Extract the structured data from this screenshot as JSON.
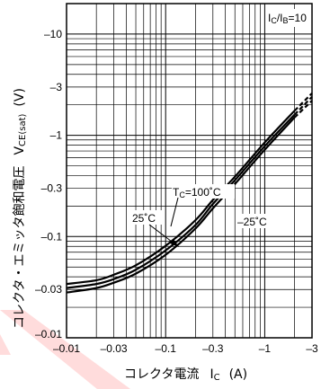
{
  "chart_data": {
    "type": "line",
    "x_scale": "log",
    "y_scale": "log",
    "xlim": [
      -0.01,
      -3
    ],
    "ylim": [
      -0.01,
      -20
    ],
    "xlabel": {
      "text": "コレクタ電流",
      "sym": "I",
      "sub": "C",
      "unit": "(A)"
    },
    "ylabel": {
      "text": "コレクタ・エミッタ飽和電圧",
      "sym": "V",
      "sub": "CE(sat)",
      "unit": "(V)"
    },
    "condition": {
      "a": "I",
      "a_sub": "C",
      "slash": "/I",
      "b_sub": "B",
      "value": "=10"
    },
    "x_ticks": [
      "–0.01",
      "–0.03",
      "–0.1",
      "–0.3",
      "–1",
      "–3"
    ],
    "y_ticks": [
      "–0.01",
      "–0.03",
      "–0.1",
      "–0.3",
      "–1",
      "–3",
      "–10"
    ],
    "grid": true,
    "series": [
      {
        "name": "Tc=100°C",
        "label": {
          "pre": "T",
          "sub": "C",
          "post": "=100˚C"
        },
        "x": [
          -0.01,
          -0.02,
          -0.03,
          -0.05,
          -0.1,
          -0.2,
          -0.3,
          -0.5,
          -1,
          -2,
          -3
        ],
        "y": [
          -0.028,
          -0.031,
          -0.035,
          -0.043,
          -0.066,
          -0.12,
          -0.19,
          -0.33,
          -0.72,
          -1.5,
          -2.2
        ]
      },
      {
        "name": "25°C",
        "label": {
          "pre": "25˚C"
        },
        "x": [
          -0.01,
          -0.02,
          -0.03,
          -0.05,
          -0.1,
          -0.2,
          -0.3,
          -0.5,
          -1,
          -2,
          -3
        ],
        "y": [
          -0.031,
          -0.034,
          -0.038,
          -0.047,
          -0.073,
          -0.13,
          -0.21,
          -0.36,
          -0.78,
          -1.6,
          -2.4
        ]
      },
      {
        "name": "-25°C",
        "label": {
          "pre": "–25˚C"
        },
        "x": [
          -0.01,
          -0.02,
          -0.03,
          -0.05,
          -0.1,
          -0.2,
          -0.3,
          -0.5,
          -1,
          -2,
          -3
        ],
        "y": [
          -0.034,
          -0.037,
          -0.042,
          -0.052,
          -0.081,
          -0.145,
          -0.23,
          -0.39,
          -0.85,
          -1.75,
          -2.6
        ]
      }
    ]
  }
}
